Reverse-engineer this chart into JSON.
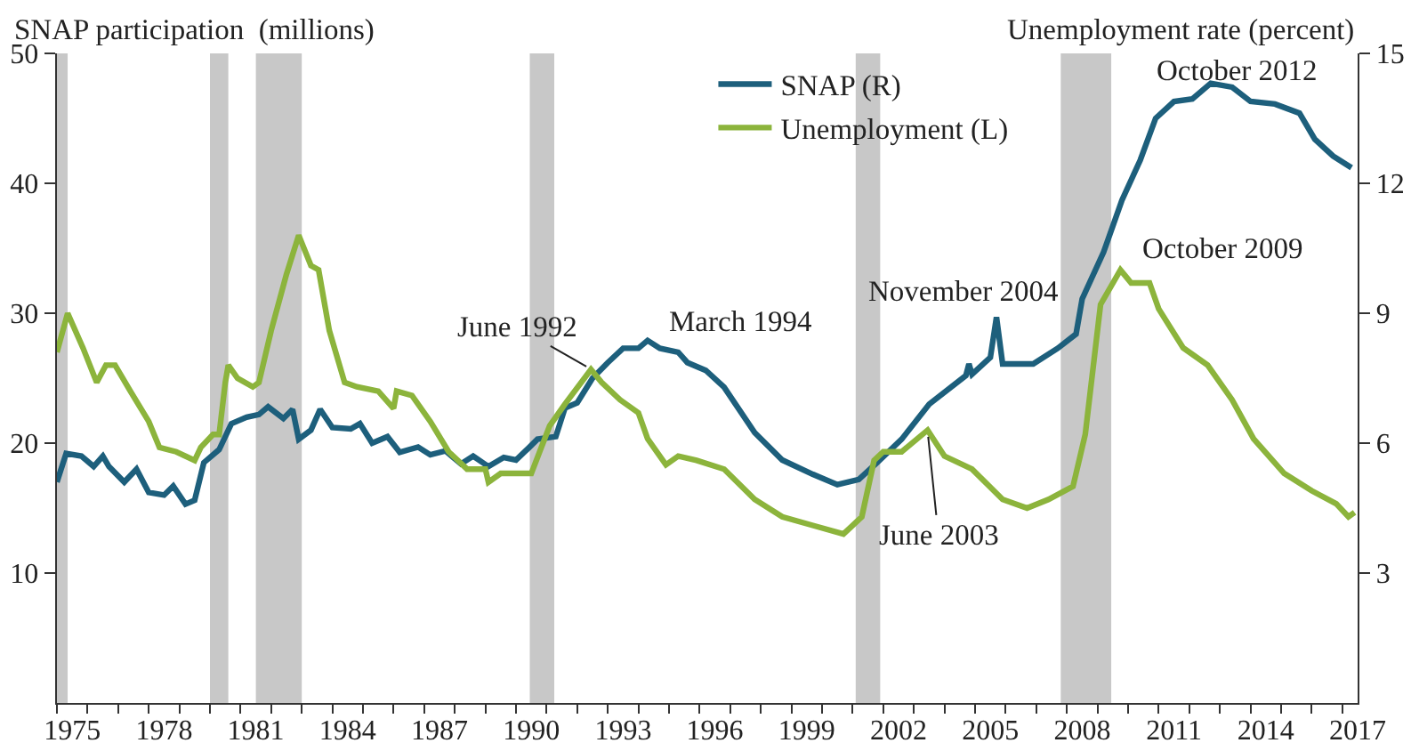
{
  "chart_data": {
    "type": "line",
    "ylabel": "SNAP participation  (millions)",
    "y2label": "Unemployment rate (percent)",
    "xlim": [
      1975,
      2017.5
    ],
    "xticks": [
      {
        "value": 1975.5,
        "label": "1975"
      },
      {
        "value": 1978.5,
        "label": "1978"
      },
      {
        "value": 1981.5,
        "label": "1981"
      },
      {
        "value": 1984.5,
        "label": "1984"
      },
      {
        "value": 1987.5,
        "label": "1987"
      },
      {
        "value": 1990.5,
        "label": "1990"
      },
      {
        "value": 1993.5,
        "label": "1993"
      },
      {
        "value": 1996.5,
        "label": "1996"
      },
      {
        "value": 1999.5,
        "label": "1999"
      },
      {
        "value": 2002.5,
        "label": "2002"
      },
      {
        "value": 2005.5,
        "label": "2005"
      },
      {
        "value": 2008.5,
        "label": "2008"
      },
      {
        "value": 2011.5,
        "label": "2011"
      },
      {
        "value": 2014.5,
        "label": "2014"
      },
      {
        "value": 2017.5,
        "label": "2017"
      }
    ],
    "ylim": [
      0,
      50
    ],
    "yticks": [
      10,
      20,
      30,
      40,
      50
    ],
    "y2lim": [
      0,
      15
    ],
    "y2ticks": [
      3,
      6,
      9,
      12,
      15
    ],
    "grid": false,
    "legend": "top",
    "marker": "none",
    "line_style": "solid",
    "series": [
      {
        "name": "SNAP (R)",
        "color": "#1d5f7c",
        "x": [
          1975.0,
          1975.3,
          1975.8,
          1976.2,
          1976.5,
          1976.7,
          1977.2,
          1977.6,
          1978.0,
          1978.5,
          1978.8,
          1979.2,
          1979.5,
          1979.8,
          1980.3,
          1980.7,
          1981.2,
          1981.6,
          1981.9,
          1982.4,
          1982.7,
          1982.9,
          1983.3,
          1983.6,
          1984.0,
          1984.6,
          1984.9,
          1985.3,
          1985.8,
          1986.2,
          1986.8,
          1987.2,
          1987.7,
          1988.2,
          1988.6,
          1989.1,
          1989.6,
          1990.0,
          1990.4,
          1990.7,
          1991.3,
          1991.6,
          1992.0,
          1992.5,
          1993.0,
          1993.5,
          1994.0,
          1994.3,
          1994.7,
          1995.3,
          1995.6,
          1996.2,
          1996.8,
          1997.8,
          1998.7,
          1999.7,
          2000.5,
          2001.2,
          2001.8,
          2002.6,
          2003.5,
          2004.7,
          2004.8,
          2004.9,
          2005.5,
          2005.7,
          2005.9,
          2006.9,
          2007.7,
          2008.3,
          2008.5,
          2009.2,
          2009.8,
          2010.4,
          2010.9,
          2011.5,
          2012.1,
          2012.7,
          2013.4,
          2014.0,
          2014.8,
          2015.6,
          2016.1,
          2016.7,
          2017.3
        ],
        "values": [
          17,
          19.2,
          19,
          18.2,
          19,
          18.2,
          17,
          18,
          16.2,
          16,
          16.7,
          15.3,
          15.6,
          18.5,
          19.5,
          21.5,
          22,
          22.2,
          22.8,
          21.9,
          22.6,
          20.3,
          21,
          22.6,
          21.2,
          21.1,
          21.5,
          20,
          20.5,
          19.3,
          19.7,
          19.1,
          19.4,
          18.4,
          19,
          18.2,
          18.9,
          18.7,
          19.6,
          20.3,
          20.5,
          22.7,
          23.1,
          25,
          26.2,
          27.3,
          27.3,
          27.9,
          27.3,
          27,
          26.2,
          25.6,
          24.3,
          20.8,
          18.7,
          17.6,
          16.8,
          17.2,
          18.5,
          20.3,
          23,
          25.2,
          26.1,
          25.3,
          26.6,
          29.7,
          26.1,
          26.1,
          27.3,
          28.4,
          31.1,
          34.7,
          38.7,
          41.8,
          45,
          46.3,
          46.5,
          47.7,
          47.4,
          46.3,
          46.1,
          45.4,
          43.4,
          42.1,
          41.2
        ]
      },
      {
        "name": "Unemployment (L)",
        "color": "#8cb43c",
        "axis": "y2",
        "x": [
          1975.0,
          1975.35,
          1975.85,
          1976.3,
          1976.6,
          1976.9,
          1977.4,
          1978.0,
          1978.35,
          1978.9,
          1979.5,
          1979.7,
          1980.1,
          1980.3,
          1980.5,
          1980.6,
          1980.9,
          1981.4,
          1981.6,
          1982.0,
          1982.5,
          1982.9,
          1983.3,
          1983.55,
          1983.9,
          1984.4,
          1984.8,
          1985.5,
          1986.0,
          1986.1,
          1986.6,
          1987.2,
          1987.8,
          1988.4,
          1989.0,
          1989.1,
          1989.5,
          1990.5,
          1991.1,
          1991.6,
          1992.45,
          1992.8,
          1993.4,
          1994.0,
          1994.3,
          1994.9,
          1995.3,
          1995.9,
          1996.8,
          1997.8,
          1998.7,
          1999.7,
          2000.7,
          2001.3,
          2001.7,
          2002.0,
          2002.6,
          2003.45,
          2004.0,
          2004.9,
          2005.9,
          2006.7,
          2007.4,
          2008.2,
          2008.6,
          2009.1,
          2009.75,
          2010.1,
          2010.7,
          2011.0,
          2011.8,
          2012.6,
          2013.4,
          2014.1,
          2015.1,
          2016.0,
          2016.8,
          2017.2,
          2017.4
        ],
        "values": [
          8.1,
          9.0,
          8.2,
          7.4,
          7.8,
          7.8,
          7.2,
          6.5,
          5.9,
          5.8,
          5.6,
          5.9,
          6.2,
          6.2,
          7.4,
          7.8,
          7.5,
          7.3,
          7.4,
          8.6,
          9.9,
          10.8,
          10.1,
          10.0,
          8.6,
          7.4,
          7.3,
          7.2,
          6.8,
          7.2,
          7.1,
          6.5,
          5.8,
          5.4,
          5.4,
          5.1,
          5.3,
          5.3,
          6.4,
          6.9,
          7.7,
          7.4,
          7.0,
          6.7,
          6.1,
          5.5,
          5.7,
          5.6,
          5.4,
          4.7,
          4.3,
          4.1,
          3.9,
          4.3,
          5.6,
          5.8,
          5.8,
          6.3,
          5.7,
          5.4,
          4.7,
          4.5,
          4.7,
          5.0,
          6.2,
          9.2,
          10.0,
          9.7,
          9.7,
          9.1,
          8.2,
          7.8,
          7.0,
          6.1,
          5.3,
          4.9,
          4.6,
          4.3,
          4.4
        ]
      }
    ],
    "bands": [
      {
        "axis": "x",
        "from": 1975.0,
        "to": 1975.35,
        "color": "#c8c8c8"
      },
      {
        "axis": "x",
        "from": 1980.0,
        "to": 1980.6,
        "color": "#c8c8c8"
      },
      {
        "axis": "x",
        "from": 1981.5,
        "to": 1983.0,
        "color": "#c8c8c8"
      },
      {
        "axis": "x",
        "from": 1990.45,
        "to": 1991.25,
        "color": "#c8c8c8"
      },
      {
        "axis": "x",
        "from": 2001.1,
        "to": 2001.9,
        "color": "#c8c8c8"
      },
      {
        "axis": "x",
        "from": 2007.8,
        "to": 2009.45,
        "color": "#c8c8c8"
      }
    ],
    "annotations": [
      {
        "text": "June 1992",
        "x": 1992.45,
        "y": 25.7
      },
      {
        "text": "March 1994",
        "x": 1994.2,
        "y": 27.9
      },
      {
        "text": "November 2004",
        "x": 2004.85,
        "y": 26.1
      },
      {
        "text": "June 2003",
        "x": 2003.45,
        "y": 20.9
      },
      {
        "text": "October 2009",
        "x": 2009.75,
        "y": 33.3
      },
      {
        "text": "October 2012",
        "x": 2012.75,
        "y": 47.9
      }
    ]
  }
}
